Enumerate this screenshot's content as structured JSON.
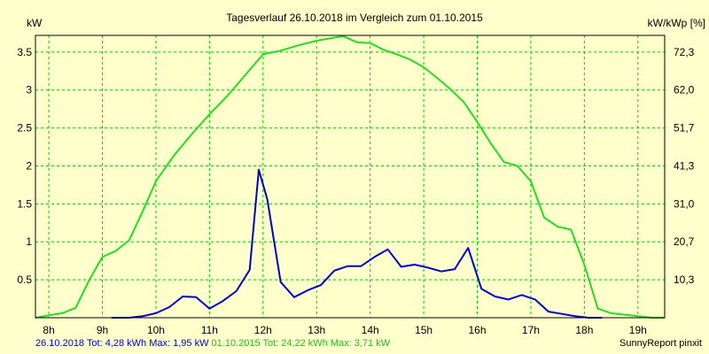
{
  "chart_data": {
    "type": "line",
    "title": "Tagesverlauf 26.10.2018 im Vergleich zum 01.10.2015",
    "ylabel_left": "kW",
    "ylabel_right": "kW/kWp [%]",
    "xlim": [
      7.75,
      19.5
    ],
    "ylim": [
      0,
      3.72
    ],
    "x_ticks": [
      {
        "v": 8,
        "label": "8h"
      },
      {
        "v": 9,
        "label": "9h"
      },
      {
        "v": 10,
        "label": "10h"
      },
      {
        "v": 11,
        "label": "11h"
      },
      {
        "v": 12,
        "label": "12h"
      },
      {
        "v": 13,
        "label": "13h"
      },
      {
        "v": 14,
        "label": "14h"
      },
      {
        "v": 15,
        "label": "15h"
      },
      {
        "v": 16,
        "label": "16h"
      },
      {
        "v": 17,
        "label": "17h"
      },
      {
        "v": 18,
        "label": "18h"
      },
      {
        "v": 19,
        "label": "19h"
      }
    ],
    "y_ticks_left": [
      {
        "v": 0.5,
        "label": "0.5"
      },
      {
        "v": 1,
        "label": "1"
      },
      {
        "v": 1.5,
        "label": "1.5"
      },
      {
        "v": 2,
        "label": "2"
      },
      {
        "v": 2.5,
        "label": "2.5"
      },
      {
        "v": 3,
        "label": "3"
      },
      {
        "v": 3.5,
        "label": "3.5"
      }
    ],
    "y_ticks_right": [
      {
        "v": 0.5,
        "label": "10,3"
      },
      {
        "v": 1,
        "label": "20,7"
      },
      {
        "v": 1.5,
        "label": "31,0"
      },
      {
        "v": 2,
        "label": "41,3"
      },
      {
        "v": 2.5,
        "label": "51,7"
      },
      {
        "v": 3,
        "label": "62,0"
      },
      {
        "v": 3.5,
        "label": "72,3"
      }
    ],
    "grid": true,
    "series": [
      {
        "name": "26.10.2018",
        "color": "#0000cc",
        "x": [
          9.17,
          9.5,
          9.75,
          10.0,
          10.25,
          10.5,
          10.75,
          11.0,
          11.25,
          11.5,
          11.75,
          11.92,
          12.08,
          12.33,
          12.58,
          12.83,
          13.08,
          13.33,
          13.58,
          13.83,
          14.08,
          14.33,
          14.58,
          14.83,
          15.08,
          15.33,
          15.58,
          15.83,
          16.08,
          16.33,
          16.58,
          16.83,
          17.08,
          17.33,
          17.58,
          17.83,
          18.08,
          18.33
        ],
        "y": [
          0,
          0,
          0.02,
          0.06,
          0.14,
          0.28,
          0.27,
          0.12,
          0.22,
          0.35,
          0.63,
          1.95,
          1.56,
          0.47,
          0.27,
          0.36,
          0.43,
          0.62,
          0.68,
          0.68,
          0.8,
          0.9,
          0.67,
          0.7,
          0.66,
          0.61,
          0.64,
          0.92,
          0.38,
          0.28,
          0.24,
          0.3,
          0.24,
          0.08,
          0.05,
          0.02,
          0,
          0
        ]
      },
      {
        "name": "01.10.2015",
        "color": "#22dd22",
        "x": [
          7.75,
          8.0,
          8.25,
          8.5,
          8.75,
          9.0,
          9.25,
          9.5,
          9.75,
          10.0,
          10.33,
          10.67,
          11.0,
          11.33,
          11.67,
          12.0,
          12.33,
          12.67,
          13.0,
          13.25,
          13.5,
          13.75,
          14.0,
          14.25,
          14.5,
          14.75,
          15.0,
          15.25,
          15.5,
          15.75,
          16.0,
          16.25,
          16.5,
          16.75,
          17.0,
          17.25,
          17.5,
          17.75,
          18.0,
          18.25,
          18.5,
          18.75,
          19.0,
          19.25,
          19.5
        ],
        "y": [
          0,
          0.03,
          0.06,
          0.13,
          0.49,
          0.8,
          0.88,
          1.02,
          1.4,
          1.8,
          2.13,
          2.42,
          2.68,
          2.92,
          3.2,
          3.47,
          3.52,
          3.59,
          3.65,
          3.68,
          3.71,
          3.63,
          3.62,
          3.53,
          3.47,
          3.4,
          3.3,
          3.16,
          3.01,
          2.84,
          2.58,
          2.3,
          2.05,
          2.0,
          1.8,
          1.32,
          1.2,
          1.16,
          0.7,
          0.12,
          0.06,
          0.04,
          0.02,
          0,
          0
        ]
      }
    ]
  },
  "footer": {
    "blue_text": "26.10.2018 Tot: 4,28 kWh Max: 1,95 kW",
    "green_text": "01.10.2015 Tot: 24,22 kWh Max: 3,71 kW",
    "credit": "SunnyReport pinxit"
  }
}
